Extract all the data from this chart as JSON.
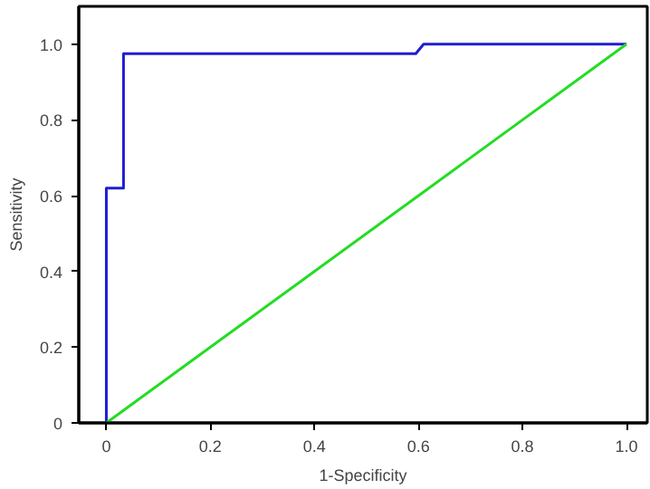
{
  "chart_data": {
    "type": "line",
    "xlabel": "1-Specificity",
    "ylabel": "Sensitivity",
    "series": [
      {
        "color": "#1f1fd0",
        "x": [
          0,
          0,
          0.033,
          0.033,
          0.595,
          0.61,
          1.0
        ],
        "values": [
          0,
          0.62,
          0.62,
          0.975,
          0.975,
          1.0,
          1.0
        ]
      },
      {
        "color": "#22dd22",
        "x": [
          0,
          1.0
        ],
        "values": [
          0,
          1.0
        ]
      }
    ],
    "xlim": [
      -0.053,
      1.04
    ],
    "ylim": [
      0,
      1.1
    ],
    "xticks": [
      {
        "value": 0,
        "label": "0"
      },
      0.2,
      0.4,
      0.6,
      0.8,
      {
        "value": 1,
        "label": "1.0"
      }
    ],
    "yticks": [
      {
        "value": 0,
        "label": "0"
      },
      0.2,
      0.4,
      0.6,
      0.8,
      {
        "value": 1,
        "label": "1.0"
      }
    ],
    "grid": false,
    "marker": "none",
    "line_style": "solid"
  }
}
